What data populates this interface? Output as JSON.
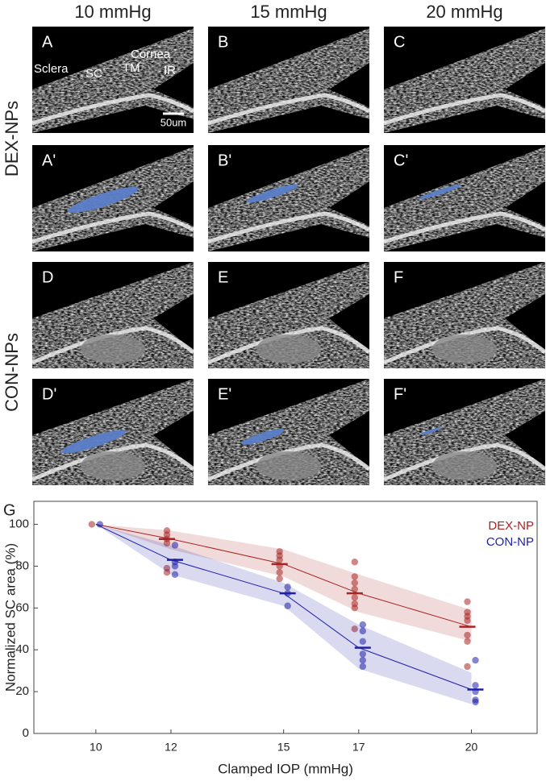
{
  "figure": {
    "columns": [
      "10 mmHg",
      "15 mmHg",
      "20 mmHg"
    ],
    "rows": [
      "DEX-NPs",
      "CON-NPs"
    ],
    "panels": [
      "A",
      "B",
      "C",
      "A'",
      "B'",
      "C'",
      "D",
      "E",
      "F",
      "D'",
      "E'",
      "F'"
    ],
    "annotations": [
      "Sclera",
      "SC",
      "TM",
      "Cornea",
      "IR",
      "50um"
    ]
  },
  "chart_data": {
    "type": "scatter",
    "panel_label": "G",
    "xlabel": "Clamped IOP (mmHg)",
    "ylabel": "Normalized SC area (%)",
    "xlim": [
      8.35,
      21.75
    ],
    "ylim": [
      0,
      111
    ],
    "xticks": [
      10,
      12,
      15,
      17,
      20
    ],
    "yticks": [
      0,
      20,
      40,
      60,
      80,
      100
    ],
    "legend": "upper right",
    "x": [
      10,
      12,
      15,
      17,
      20
    ],
    "series": [
      {
        "name": "DEX-NP",
        "color": "#a82424",
        "values": [
          100,
          93,
          81,
          67,
          51
        ],
        "lower": [
          100,
          88,
          75,
          58,
          44
        ],
        "upper": [
          100,
          97,
          88,
          76,
          59
        ],
        "points": [
          [
            100
          ],
          [
            97,
            95,
            93,
            91,
            79,
            77
          ],
          [
            87,
            85,
            83,
            80,
            77,
            74
          ],
          [
            82,
            75,
            72,
            69,
            65,
            62,
            60,
            50
          ],
          [
            63,
            58,
            56,
            54,
            47,
            44,
            32
          ]
        ]
      },
      {
        "name": "CON-NP",
        "color": "#1f1fa8",
        "values": [
          100,
          83,
          67,
          41,
          21
        ],
        "lower": [
          100,
          76,
          61,
          31,
          14
        ],
        "upper": [
          100,
          90,
          72,
          52,
          29
        ],
        "points": [
          [
            100
          ],
          [
            90,
            82,
            80,
            76
          ],
          [
            70,
            67,
            61
          ],
          [
            52,
            49,
            44,
            38,
            35,
            32
          ],
          [
            35,
            23,
            20,
            16,
            15
          ]
        ]
      }
    ]
  }
}
